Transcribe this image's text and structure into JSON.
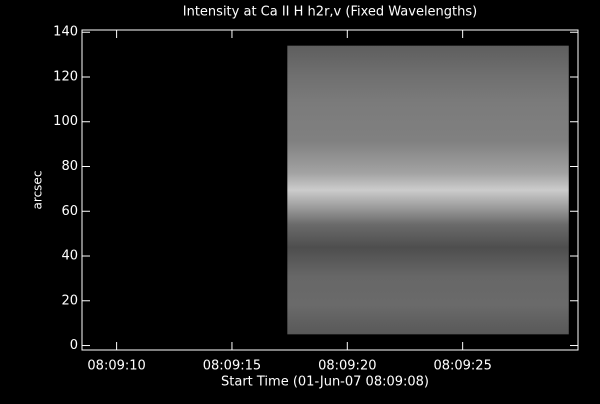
{
  "chart_data": {
    "type": "image",
    "title": "Intensity at Ca II H h2r,v (Fixed Wavelengths)",
    "xlabel": "Start Time (01-Jun-07 08:09:08)",
    "ylabel": "arcsec",
    "xlim": [
      0.5,
      22
    ],
    "xticks": [
      {
        "value": 2,
        "label": "08:09:10"
      },
      {
        "value": 7,
        "label": "08:09:15"
      },
      {
        "value": 12,
        "label": "08:09:20"
      },
      {
        "value": 17,
        "label": "08:09:25"
      }
    ],
    "ylim": [
      -2,
      141
    ],
    "yticks": [
      0,
      20,
      40,
      60,
      80,
      100,
      120,
      140
    ],
    "image_extent": {
      "x": [
        9.4,
        21.6
      ],
      "y": [
        5,
        134
      ]
    }
  }
}
